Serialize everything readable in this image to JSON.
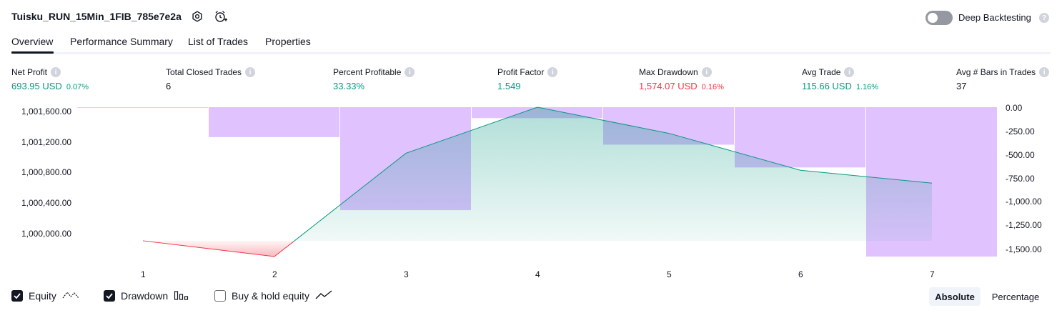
{
  "strategy_title": "Tuisku_RUN_15Min_1FIB_785e7e2a",
  "header": {
    "settings_icon": "gear-icon",
    "alert_icon": "alarm-clock-plus-icon"
  },
  "deep_backtesting": {
    "label": "Deep Backtesting",
    "enabled": false,
    "help": "?"
  },
  "tabs": [
    {
      "label": "Overview",
      "active": true
    },
    {
      "label": "Performance Summary",
      "active": false
    },
    {
      "label": "List of Trades",
      "active": false
    },
    {
      "label": "Properties",
      "active": false
    }
  ],
  "metrics": [
    {
      "label": "Net Profit",
      "value": "693.95 USD",
      "percent": "0.07%",
      "color": "#089981",
      "pct_color": "#089981"
    },
    {
      "label": "Total Closed Trades",
      "value": "6",
      "percent": "",
      "color": "#131722",
      "pct_color": "#131722"
    },
    {
      "label": "Percent Profitable",
      "value": "33.33%",
      "percent": "",
      "color": "#089981",
      "pct_color": "#089981"
    },
    {
      "label": "Profit Factor",
      "value": "1.549",
      "percent": "",
      "color": "#089981",
      "pct_color": "#089981"
    },
    {
      "label": "Max Drawdown",
      "value": "1,574.07 USD",
      "percent": "0.16%",
      "color": "#f23645",
      "pct_color": "#f23645"
    },
    {
      "label": "Avg Trade",
      "value": "115.66 USD",
      "percent": "1.16%",
      "color": "#089981",
      "pct_color": "#089981"
    },
    {
      "label": "Avg # Bars in Trades",
      "value": "37",
      "percent": "",
      "color": "#131722",
      "pct_color": "#131722"
    }
  ],
  "chart_data": {
    "type": "line",
    "title": "",
    "x": [
      1,
      2,
      3,
      4,
      5,
      6,
      7
    ],
    "x_tick_labels": [
      "1",
      "2",
      "3",
      "4",
      "5",
      "6",
      "7"
    ],
    "series": [
      {
        "name": "Equity",
        "axis": "left",
        "values": [
          1000000.0,
          999810.0,
          1001055.0,
          1001610.0,
          1001295.0,
          1000850.0,
          1000695.0
        ],
        "color_up": "#089981",
        "color_down": "#f23645"
      },
      {
        "name": "Drawdown",
        "axis": "right",
        "kind": "bar",
        "values": [
          0.0,
          -315.0,
          -1085.0,
          -115.0,
          -395.0,
          -635.0,
          -1574.07
        ],
        "color": "#cc99ff"
      }
    ],
    "baseline": 1000000.0,
    "y_left_ticks": [
      "1,001,600.00",
      "1,001,200.00",
      "1,000,800.00",
      "1,000,400.00",
      "1,000,000.00"
    ],
    "y_left_tick_values": [
      1001600,
      1001200,
      1000800,
      1000400,
      1000000
    ],
    "y_right_ticks": [
      "0.00",
      "-250.00",
      "-500.00",
      "-750.00",
      "-1,000.00",
      "-1,250.00",
      "-1,500.00"
    ],
    "y_right_tick_values": [
      0,
      -250,
      -500,
      -750,
      -1000,
      -1250,
      -1500
    ],
    "ylim_left": [
      999810.0,
      1001610.0
    ],
    "ylim_right": [
      -1574.07,
      0.0
    ],
    "grid": false
  },
  "legend": [
    {
      "label": "Equity",
      "checked": true,
      "icon": "equity-line-icon"
    },
    {
      "label": "Drawdown",
      "checked": true,
      "icon": "drawdown-bars-icon"
    },
    {
      "label": "Buy & hold equity",
      "checked": false,
      "icon": "buy-hold-line-icon"
    }
  ],
  "scale_toggle": {
    "options": [
      "Absolute",
      "Percentage"
    ],
    "selected": "Absolute"
  }
}
